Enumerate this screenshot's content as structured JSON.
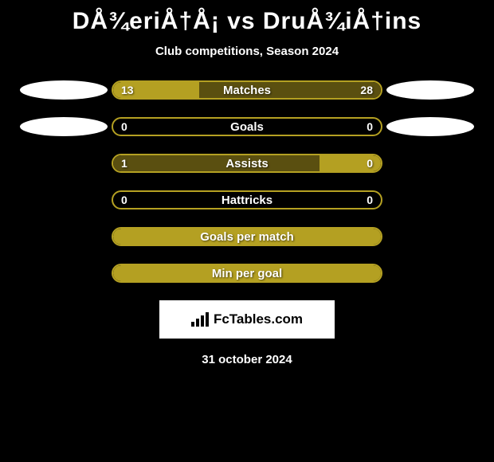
{
  "title": "DÅ¾eriÅ†Å¡ vs DruÅ¾iÅ†ins",
  "subtitle": "Club competitions, Season 2024",
  "date": "31 october 2024",
  "footer_label": "FcTables.com",
  "colors": {
    "olive": "#b4a022",
    "dark_olive": "#5a4f10",
    "white": "#ffffff"
  },
  "rows": [
    {
      "label": "Matches",
      "left_val": "13",
      "right_val": "28",
      "left_pct": 32,
      "right_pct": 68,
      "left_fill": "#b4a022",
      "right_fill": "#5a4f10",
      "border": "#b4a022",
      "show_left_ellipse": true,
      "show_right_ellipse": true
    },
    {
      "label": "Goals",
      "left_val": "0",
      "right_val": "0",
      "left_pct": 0,
      "right_pct": 0,
      "left_fill": "#b4a022",
      "right_fill": "#5a4f10",
      "border": "#b4a022",
      "show_left_ellipse": true,
      "show_right_ellipse": true
    },
    {
      "label": "Assists",
      "left_val": "1",
      "right_val": "0",
      "left_pct": 77,
      "right_pct": 23,
      "left_fill": "#5a4f10",
      "right_fill": "#b4a022",
      "border": "#b4a022",
      "show_left_ellipse": false,
      "show_right_ellipse": false
    },
    {
      "label": "Hattricks",
      "left_val": "0",
      "right_val": "0",
      "left_pct": 0,
      "right_pct": 0,
      "left_fill": "#b4a022",
      "right_fill": "#5a4f10",
      "border": "#b4a022",
      "show_left_ellipse": false,
      "show_right_ellipse": false
    },
    {
      "label": "Goals per match",
      "left_val": "",
      "right_val": "",
      "left_pct": 100,
      "right_pct": 0,
      "left_fill": "#b4a022",
      "right_fill": "#5a4f10",
      "border": "#b4a022",
      "show_left_ellipse": false,
      "show_right_ellipse": false
    },
    {
      "label": "Min per goal",
      "left_val": "",
      "right_val": "",
      "left_pct": 100,
      "right_pct": 0,
      "left_fill": "#b4a022",
      "right_fill": "#5a4f10",
      "border": "#b4a022",
      "show_left_ellipse": false,
      "show_right_ellipse": false
    }
  ]
}
